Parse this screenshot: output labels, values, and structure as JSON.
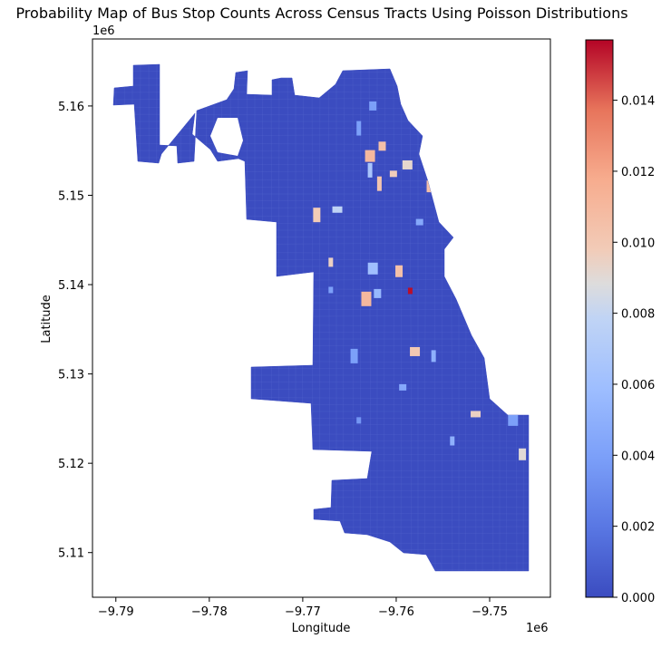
{
  "chart_data": {
    "type": "heatmap",
    "subtype": "choropleth",
    "title": "Probability Map of Bus Stop Counts Across Census Tracts Using Poisson Distributions",
    "xlabel": "Longitude",
    "ylabel": "Latitude",
    "x_offset_label": "1e6",
    "y_offset_label": "1e6",
    "x_ticks": [
      -9.79,
      -9.78,
      -9.77,
      -9.76,
      -9.75
    ],
    "x_tick_labels": [
      "−9.79",
      "−9.78",
      "−9.77",
      "−9.76",
      "−9.75"
    ],
    "y_ticks": [
      5.11,
      5.12,
      5.13,
      5.14,
      5.15,
      5.16
    ],
    "y_tick_labels": [
      "5.11",
      "5.12",
      "5.13",
      "5.14",
      "5.15",
      "5.16"
    ],
    "xlim": [
      -9.7925,
      -9.7435
    ],
    "ylim": [
      5.105,
      5.1675
    ],
    "colormap": "coolwarm",
    "color_range": [
      0.0,
      0.0157
    ],
    "colorbar_ticks": [
      0.0,
      0.002,
      0.004,
      0.006,
      0.008,
      0.01,
      0.012,
      0.014
    ],
    "colorbar_tick_labels": [
      "0.000",
      "0.002",
      "0.004",
      "0.006",
      "0.008",
      "0.010",
      "0.012",
      "0.014"
    ],
    "grid": false,
    "highlighted_tracts": [
      {
        "x": -9.7585,
        "y": 5.1393,
        "value": 0.0155
      },
      {
        "x": -9.7615,
        "y": 5.1555,
        "value": 0.0105
      },
      {
        "x": -9.7628,
        "y": 5.1544,
        "value": 0.011
      },
      {
        "x": -9.7618,
        "y": 5.1513,
        "value": 0.0102
      },
      {
        "x": -9.7603,
        "y": 5.1524,
        "value": 0.0097
      },
      {
        "x": -9.7588,
        "y": 5.1534,
        "value": 0.0092
      },
      {
        "x": -9.7565,
        "y": 5.151,
        "value": 0.0105
      },
      {
        "x": -9.7685,
        "y": 5.1478,
        "value": 0.0098
      },
      {
        "x": -9.7663,
        "y": 5.1484,
        "value": 0.0078
      },
      {
        "x": -9.767,
        "y": 5.1425,
        "value": 0.0095
      },
      {
        "x": -9.7597,
        "y": 5.1415,
        "value": 0.0105
      },
      {
        "x": -9.7632,
        "y": 5.1384,
        "value": 0.011
      },
      {
        "x": -9.767,
        "y": 5.1394,
        "value": 0.004
      },
      {
        "x": -9.762,
        "y": 5.139,
        "value": 0.0055
      },
      {
        "x": -9.7625,
        "y": 5.1418,
        "value": 0.006
      },
      {
        "x": -9.7628,
        "y": 5.1528,
        "value": 0.0065
      },
      {
        "x": -9.7575,
        "y": 5.147,
        "value": 0.0045
      },
      {
        "x": -9.758,
        "y": 5.1325,
        "value": 0.01
      },
      {
        "x": -9.756,
        "y": 5.132,
        "value": 0.005
      },
      {
        "x": -9.7645,
        "y": 5.132,
        "value": 0.004
      },
      {
        "x": -9.7515,
        "y": 5.1255,
        "value": 0.0095
      },
      {
        "x": -9.754,
        "y": 5.1225,
        "value": 0.005
      },
      {
        "x": -9.7465,
        "y": 5.121,
        "value": 0.009
      },
      {
        "x": -9.7475,
        "y": 5.125,
        "value": 0.004
      },
      {
        "x": -9.764,
        "y": 5.1248,
        "value": 0.0035
      },
      {
        "x": -9.7625,
        "y": 5.16,
        "value": 0.004
      },
      {
        "x": -9.7575,
        "y": 5.1598,
        "value": 0.005
      },
      {
        "x": -9.764,
        "y": 5.1575,
        "value": 0.004
      },
      {
        "x": -9.7593,
        "y": 5.1285,
        "value": 0.0045
      }
    ]
  }
}
